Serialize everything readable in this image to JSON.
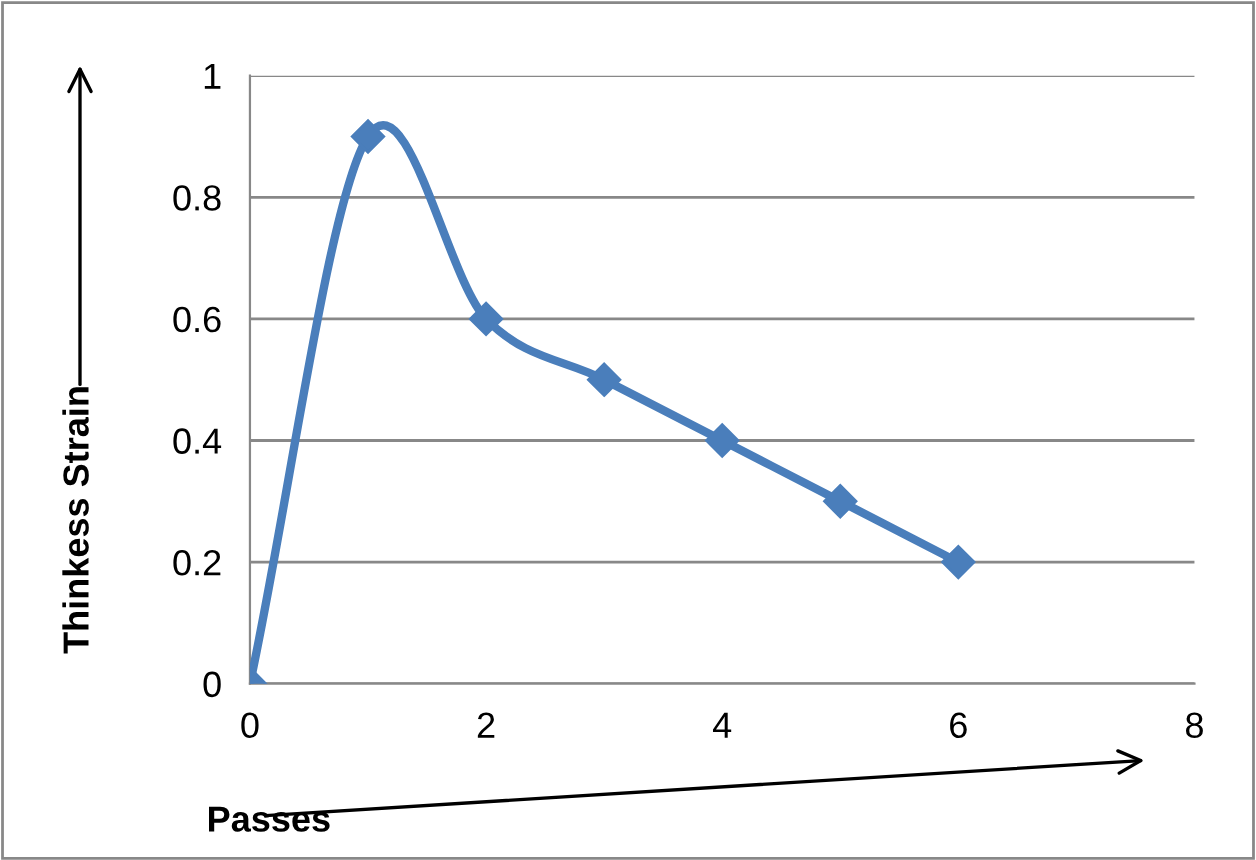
{
  "chart_data": {
    "type": "line",
    "xlabel": "Passes",
    "ylabel": "Thinkess Strain",
    "x": [
      0,
      1,
      2,
      3,
      4,
      5,
      6
    ],
    "series": [
      {
        "color": "#4a7ebb",
        "values": [
          0,
          0.9,
          0.6,
          0.5,
          0.4,
          0.3,
          0.2
        ]
      }
    ],
    "xlim": [
      0,
      8
    ],
    "xticks": [
      0,
      2,
      4,
      6,
      8
    ],
    "ylim": [
      0,
      1
    ],
    "yticks": [
      0,
      0.2,
      0.4,
      0.6,
      0.8,
      1
    ],
    "grid": "y",
    "marker": "diamond",
    "line_style": "solid"
  }
}
